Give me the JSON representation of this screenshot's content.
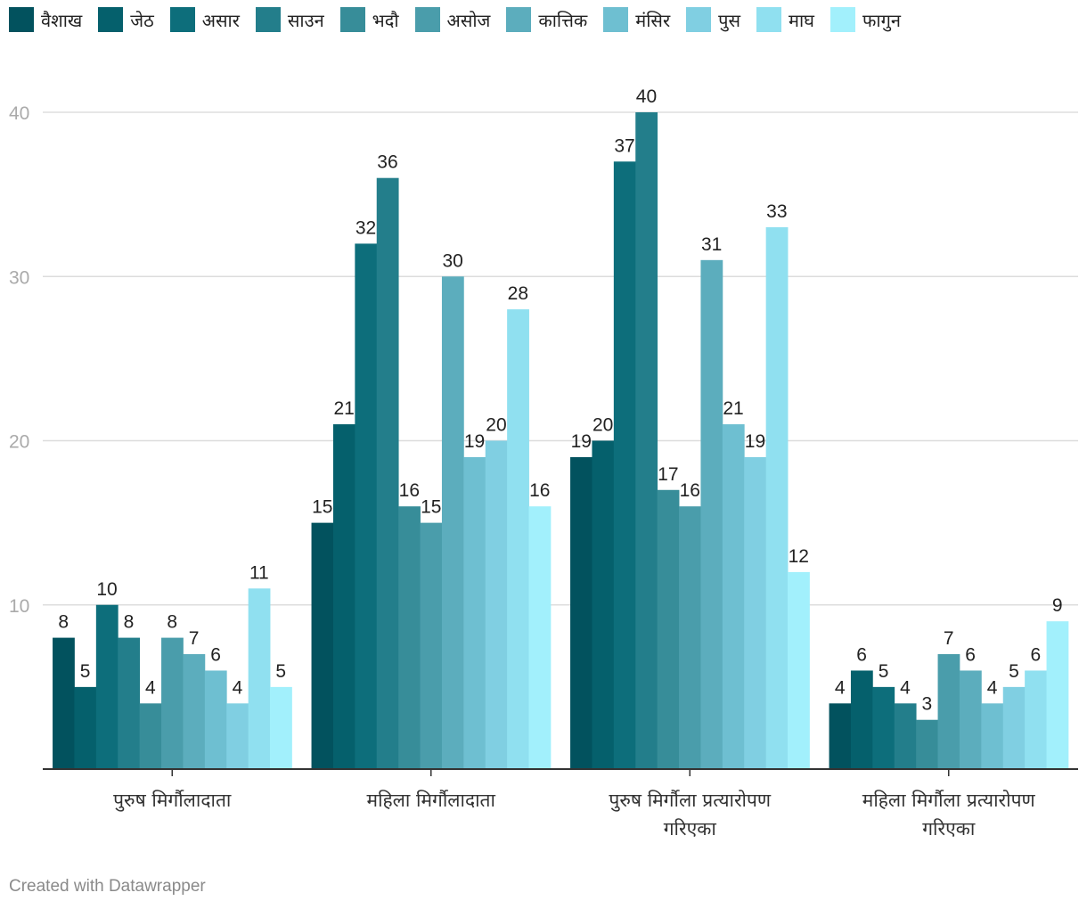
{
  "chart_data": {
    "type": "bar",
    "title": "",
    "xlabel": "",
    "ylabel": "",
    "ylim": [
      0,
      40
    ],
    "yticks": [
      10,
      20,
      30,
      40
    ],
    "grid": true,
    "legend_position": "top",
    "categories": [
      [
        "पुरुष मिर्गौलादाता"
      ],
      [
        "महिला मिर्गौलादाता"
      ],
      [
        "पुरुष मिर्गौला प्रत्यारोपण",
        "गरिएका"
      ],
      [
        "महिला मिर्गौला प्रत्यारोपण",
        "गरिएका"
      ]
    ],
    "series": [
      {
        "name": "वैशाख",
        "color": "#02525e",
        "values": [
          8,
          15,
          19,
          4
        ]
      },
      {
        "name": "जेठ",
        "color": "#05606c",
        "values": [
          5,
          21,
          20,
          6
        ]
      },
      {
        "name": "असार",
        "color": "#0d6e7b",
        "values": [
          10,
          32,
          37,
          5
        ]
      },
      {
        "name": "साउन",
        "color": "#237e8b",
        "values": [
          8,
          36,
          40,
          4
        ]
      },
      {
        "name": "भदौ",
        "color": "#378d99",
        "values": [
          4,
          16,
          17,
          3
        ]
      },
      {
        "name": "असोज",
        "color": "#4a9dab",
        "values": [
          8,
          15,
          16,
          7
        ]
      },
      {
        "name": "कात्तिक",
        "color": "#5cadbd",
        "values": [
          7,
          30,
          31,
          6
        ]
      },
      {
        "name": "मंसिर",
        "color": "#6ebfd1",
        "values": [
          6,
          19,
          21,
          4
        ]
      },
      {
        "name": "पुस",
        "color": "#80cfe2",
        "values": [
          4,
          20,
          19,
          5
        ]
      },
      {
        "name": "माघ",
        "color": "#90e0f0",
        "values": [
          11,
          28,
          33,
          6
        ]
      },
      {
        "name": "फागुन",
        "color": "#a2f0fc",
        "values": [
          5,
          16,
          12,
          9
        ]
      }
    ]
  },
  "credit": "Created with Datawrapper"
}
